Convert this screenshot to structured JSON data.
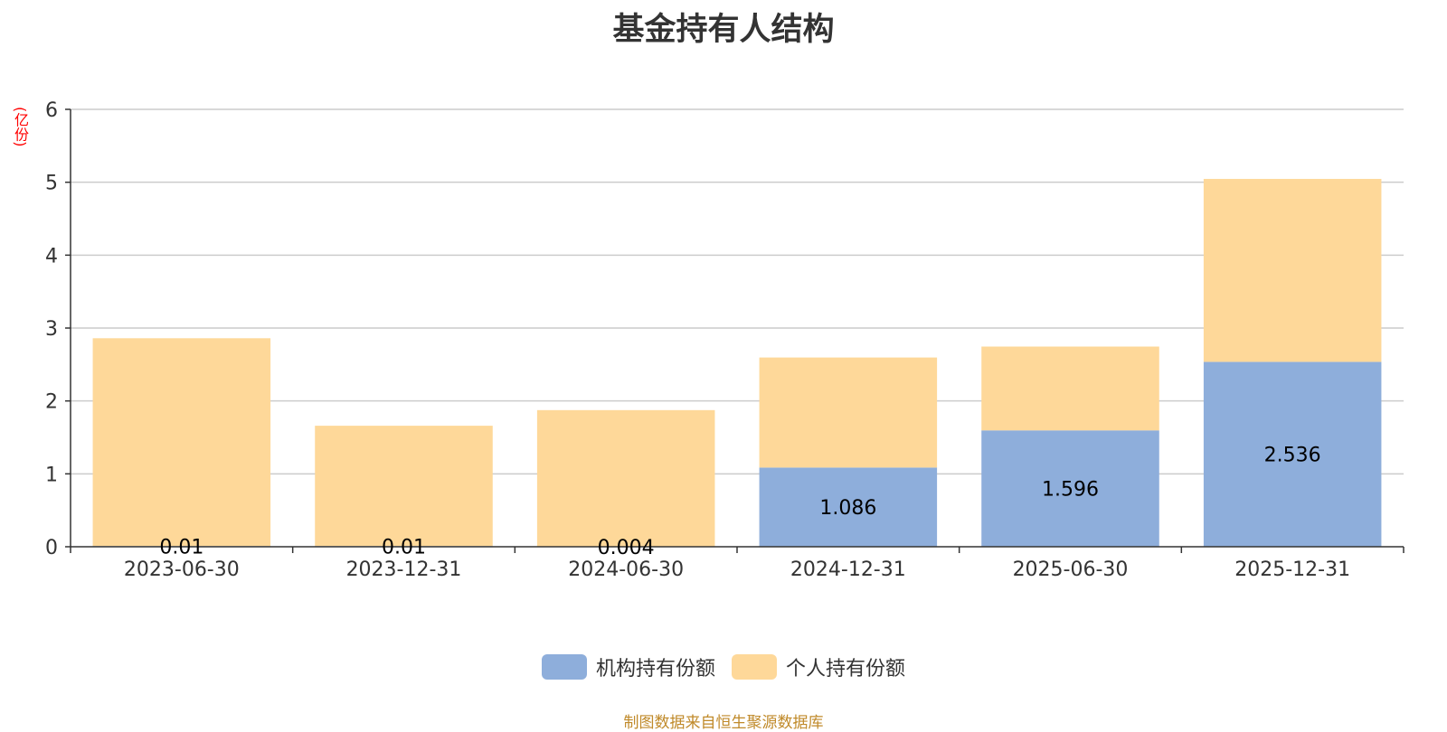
{
  "chart_data": {
    "type": "bar",
    "stacked": true,
    "title": "基金持有人结构",
    "unit_label": "(亿份)",
    "categories": [
      "2023-06-30",
      "2023-12-31",
      "2024-06-30",
      "2024-12-31",
      "2025-06-30",
      "2025-12-31"
    ],
    "series": [
      {
        "name": "机构持有份额",
        "color": "#8eaedb",
        "values": [
          0.01,
          0.01,
          0.004,
          1.086,
          1.596,
          2.536
        ],
        "labels": [
          "0.01",
          "0.01",
          "0.004",
          "1.086",
          "1.596",
          "2.536"
        ]
      },
      {
        "name": "个人持有份额",
        "color": "#fed899",
        "values": [
          2.85,
          1.65,
          1.87,
          1.51,
          1.15,
          2.51
        ]
      }
    ],
    "y_ticks": [
      "0",
      "1",
      "2",
      "3",
      "4",
      "5",
      "6"
    ],
    "ylim": [
      0,
      6
    ],
    "grid": true,
    "legend_position": "bottom-center"
  },
  "footer": {
    "source": "制图数据来自恒生聚源数据库"
  }
}
